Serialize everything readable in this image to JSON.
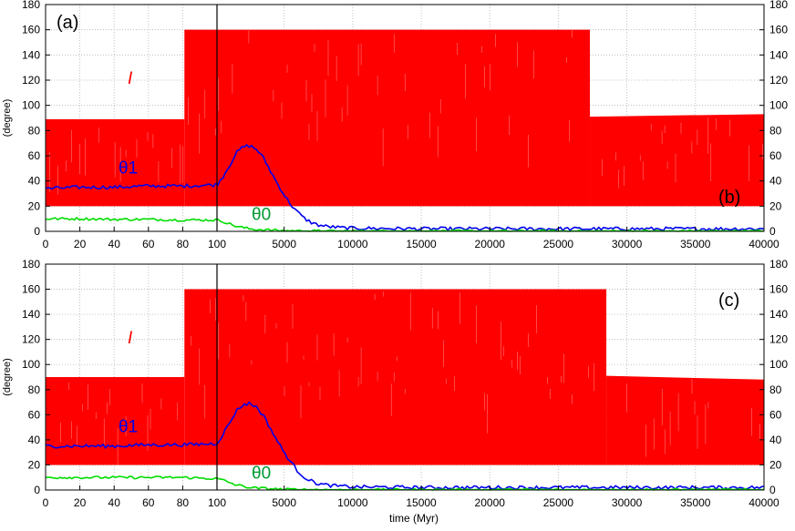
{
  "colors": {
    "inclination": "#ff0000",
    "theta1": "#0000ee",
    "theta0": "#00dd00",
    "theta0_label": "#009933",
    "grid": "#b3b3b3",
    "axis": "#000000"
  },
  "xlabel": "time (Myr)",
  "chart_data": [
    {
      "type": "line",
      "panel_labels": [
        "(a)",
        "(b)"
      ],
      "ylabel": "(degree)",
      "xlabel": "",
      "ylim": [
        0,
        180
      ],
      "yticks": [
        "0",
        "20",
        "40",
        "60",
        "80",
        "100",
        "120",
        "140",
        "160",
        "180"
      ],
      "grid": true,
      "left_segment": {
        "xlim": [
          0,
          100
        ],
        "xticks": [
          "0",
          "20",
          "40",
          "60",
          "80",
          "100"
        ]
      },
      "right_segment": {
        "xlim": [
          100,
          40000
        ],
        "xticks": [
          "5000",
          "10000",
          "15000",
          "20000",
          "25000",
          "30000",
          "35000",
          "40000"
        ]
      },
      "series": [
        {
          "name": "I",
          "kind": "band",
          "segments": [
            {
              "x": [
                0,
                81
              ],
              "upper": 89,
              "lower": 20
            },
            {
              "x": [
                81,
                27300
              ],
              "upper": 160,
              "lower": 20
            },
            {
              "x": [
                27300,
                40000
              ],
              "upper": [
                91,
                93
              ],
              "lower": 20
            }
          ]
        },
        {
          "name": "θ1",
          "x": [
            0,
            20,
            40,
            60,
            80,
            100,
            500,
            1000,
            1500,
            2000,
            2500,
            3000,
            3500,
            4000,
            4500,
            5000,
            5500,
            6000,
            6500,
            7000,
            7500,
            8000,
            9000,
            10000,
            15000,
            20000,
            25000,
            30000,
            35000,
            40000
          ],
          "y": [
            34,
            35,
            35,
            36,
            36,
            37,
            43,
            52,
            62,
            67,
            68,
            65,
            58,
            48,
            38,
            29,
            21,
            15,
            10,
            7,
            5,
            4,
            3,
            2.5,
            2,
            2,
            2,
            2,
            2,
            2
          ]
        },
        {
          "name": "θ0",
          "x": [
            0,
            20,
            40,
            60,
            80,
            100,
            500,
            1000,
            1500,
            2000,
            2500,
            3000,
            4000,
            5000,
            6000,
            8000,
            10000,
            20000,
            30000,
            40000
          ],
          "y": [
            10,
            10,
            9.5,
            9.5,
            9,
            9,
            8,
            6,
            4,
            3,
            2,
            1.5,
            1,
            0.5,
            0.3,
            0.2,
            0.1,
            0.1,
            0.1,
            0.1
          ]
        }
      ]
    },
    {
      "type": "line",
      "panel_labels": [
        "(c)"
      ],
      "ylabel": "(degree)",
      "xlabel": "time (Myr)",
      "ylim": [
        0,
        180
      ],
      "yticks": [
        "0",
        "20",
        "40",
        "60",
        "80",
        "100",
        "120",
        "140",
        "160",
        "180"
      ],
      "grid": true,
      "left_segment": {
        "xlim": [
          0,
          100
        ],
        "xticks": [
          "0",
          "20",
          "40",
          "60",
          "80",
          "100"
        ]
      },
      "right_segment": {
        "xlim": [
          100,
          40000
        ],
        "xticks": [
          "5000",
          "10000",
          "15000",
          "20000",
          "25000",
          "30000",
          "35000",
          "40000"
        ]
      },
      "series": [
        {
          "name": "I",
          "kind": "band",
          "segments": [
            {
              "x": [
                0,
                81
              ],
              "upper": 90,
              "lower": 20
            },
            {
              "x": [
                81,
                28500
              ],
              "upper": 160,
              "lower": 20
            },
            {
              "x": [
                28500,
                40000
              ],
              "upper": [
                91,
                88
              ],
              "lower": 20
            }
          ]
        },
        {
          "name": "θ1",
          "x": [
            0,
            20,
            40,
            60,
            80,
            100,
            500,
            1000,
            1500,
            2000,
            2500,
            3000,
            3500,
            4000,
            4500,
            5000,
            5500,
            6000,
            6500,
            7000,
            7500,
            8000,
            9000,
            10000,
            15000,
            20000,
            25000,
            30000,
            35000,
            40000
          ],
          "y": [
            35,
            35,
            35,
            36,
            36,
            37,
            44,
            53,
            63,
            68,
            69,
            66,
            59,
            49,
            39,
            30,
            22,
            15,
            10,
            7,
            5,
            4,
            3,
            2.5,
            2,
            2,
            2,
            2,
            2,
            2
          ]
        },
        {
          "name": "θ0",
          "x": [
            0,
            20,
            40,
            60,
            80,
            100,
            500,
            1000,
            1500,
            2000,
            2500,
            3000,
            4000,
            5000,
            6000,
            8000,
            10000,
            20000,
            30000,
            40000
          ],
          "y": [
            10,
            10,
            10,
            10,
            10,
            9,
            8,
            6,
            4,
            3,
            2,
            1.5,
            1,
            0.5,
            0.3,
            0.2,
            0.1,
            0.1,
            0.1,
            0.1
          ]
        }
      ]
    }
  ]
}
